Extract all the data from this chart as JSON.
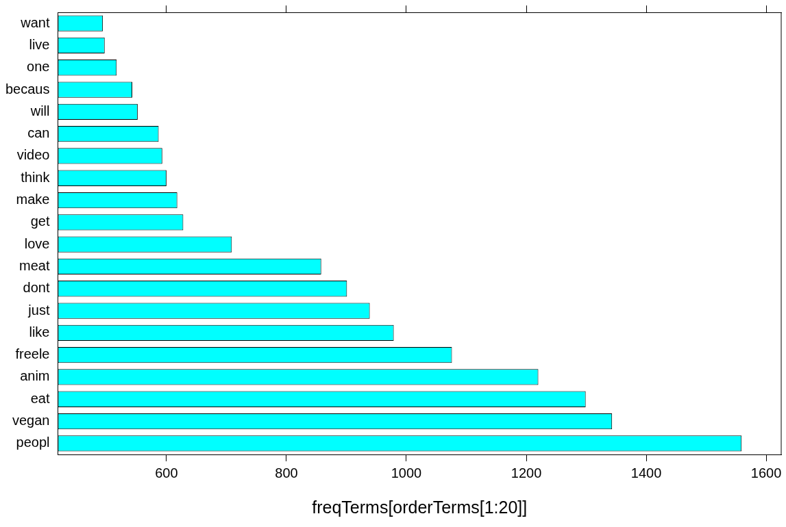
{
  "chart_data": {
    "type": "bar",
    "orientation": "horizontal",
    "xlabel": "freqTerms[orderTerms[1:20]]",
    "categories": [
      "want",
      "live",
      "one",
      "becaus",
      "will",
      "can",
      "video",
      "think",
      "make",
      "get",
      "love",
      "meat",
      "dont",
      "just",
      "like",
      "freele",
      "anim",
      "eat",
      "vegan",
      "peopl"
    ],
    "values": [
      494,
      497,
      517,
      543,
      552,
      587,
      593,
      600,
      618,
      628,
      709,
      858,
      901,
      939,
      979,
      1076,
      1220,
      1299,
      1343,
      1559
    ],
    "color": "#00ffff",
    "xlim": [
      419,
      1625
    ],
    "xticks": [
      600,
      800,
      1000,
      1200,
      1400,
      1600
    ],
    "grid": false,
    "legend": false
  }
}
